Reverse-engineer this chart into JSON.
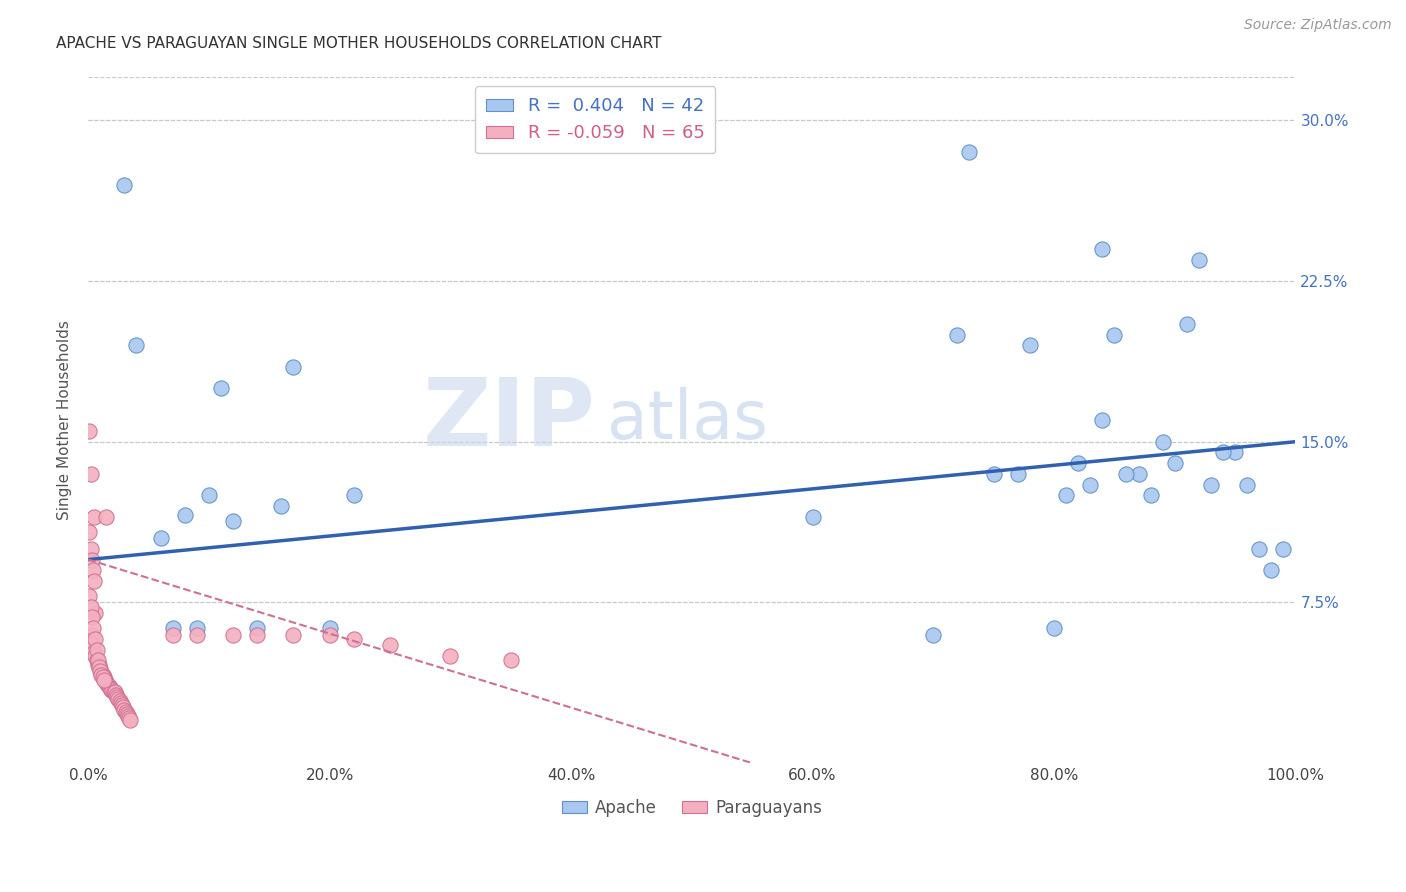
{
  "title": "APACHE VS PARAGUAYAN SINGLE MOTHER HOUSEHOLDS CORRELATION CHART",
  "source": "Source: ZipAtlas.com",
  "ylabel": "Single Mother Households",
  "apache_R": 0.404,
  "apache_N": 42,
  "paraguayan_R": -0.059,
  "paraguayan_N": 65,
  "apache_color": "#a8c8f0",
  "apache_edge_color": "#6090c8",
  "apache_line_color": "#3060b0",
  "paraguayan_color": "#f4b0c0",
  "paraguayan_edge_color": "#d07090",
  "paraguayan_line_color": "#d07090",
  "background_color": "#ffffff",
  "grid_color": "#c8c8c8",
  "watermark_zip": "ZIP",
  "watermark_atlas": "atlas",
  "xlim": [
    0.0,
    1.0
  ],
  "ylim": [
    0.0,
    0.32
  ],
  "apache_x": [
    0.03,
    0.73,
    0.84,
    0.92,
    0.97,
    0.06,
    0.08,
    0.1,
    0.12,
    0.16,
    0.22,
    0.6,
    0.75,
    0.78,
    0.82,
    0.85,
    0.87,
    0.89,
    0.91,
    0.93,
    0.95,
    0.98,
    0.07,
    0.09,
    0.14,
    0.2,
    0.7,
    0.8,
    0.83,
    0.86,
    0.88,
    0.9,
    0.94,
    0.96,
    0.99,
    0.04,
    0.11,
    0.17,
    0.72,
    0.77,
    0.81,
    0.84
  ],
  "apache_y": [
    0.27,
    0.285,
    0.24,
    0.235,
    0.1,
    0.105,
    0.116,
    0.125,
    0.113,
    0.12,
    0.125,
    0.115,
    0.135,
    0.195,
    0.14,
    0.2,
    0.135,
    0.15,
    0.205,
    0.13,
    0.145,
    0.09,
    0.063,
    0.063,
    0.063,
    0.063,
    0.06,
    0.063,
    0.13,
    0.135,
    0.125,
    0.14,
    0.145,
    0.13,
    0.1,
    0.195,
    0.175,
    0.185,
    0.2,
    0.135,
    0.125,
    0.16
  ],
  "paraguayan_x": [
    0.001,
    0.002,
    0.003,
    0.004,
    0.005,
    0.006,
    0.007,
    0.008,
    0.009,
    0.01,
    0.011,
    0.012,
    0.013,
    0.014,
    0.015,
    0.016,
    0.017,
    0.018,
    0.019,
    0.02,
    0.021,
    0.022,
    0.023,
    0.024,
    0.025,
    0.026,
    0.027,
    0.028,
    0.029,
    0.03,
    0.031,
    0.032,
    0.033,
    0.034,
    0.035,
    0.001,
    0.002,
    0.003,
    0.004,
    0.005,
    0.006,
    0.001,
    0.002,
    0.003,
    0.004,
    0.006,
    0.007,
    0.008,
    0.009,
    0.01,
    0.011,
    0.012,
    0.013,
    0.005,
    0.015,
    0.07,
    0.09,
    0.12,
    0.14,
    0.17,
    0.2,
    0.22,
    0.25,
    0.3,
    0.35
  ],
  "paraguayan_y": [
    0.155,
    0.135,
    0.06,
    0.055,
    0.052,
    0.05,
    0.048,
    0.046,
    0.046,
    0.044,
    0.042,
    0.041,
    0.04,
    0.039,
    0.038,
    0.037,
    0.036,
    0.035,
    0.034,
    0.034,
    0.033,
    0.033,
    0.032,
    0.031,
    0.03,
    0.029,
    0.028,
    0.027,
    0.026,
    0.025,
    0.024,
    0.023,
    0.022,
    0.021,
    0.02,
    0.108,
    0.1,
    0.095,
    0.09,
    0.085,
    0.07,
    0.078,
    0.073,
    0.068,
    0.063,
    0.058,
    0.053,
    0.048,
    0.045,
    0.043,
    0.041,
    0.04,
    0.039,
    0.115,
    0.115,
    0.06,
    0.06,
    0.06,
    0.06,
    0.06,
    0.06,
    0.058,
    0.055,
    0.05,
    0.048
  ],
  "yticks": [
    0.075,
    0.15,
    0.225,
    0.3
  ],
  "ytick_labels": [
    "7.5%",
    "15.0%",
    "22.5%",
    "30.0%"
  ],
  "xticks": [
    0.0,
    0.2,
    0.4,
    0.6,
    0.8,
    1.0
  ],
  "xtick_labels": [
    "0.0%",
    "20.0%",
    "40.0%",
    "60.0%",
    "80.0%",
    "100.0%"
  ],
  "apache_line_x": [
    0.0,
    1.0
  ],
  "apache_line_y": [
    0.095,
    0.15
  ],
  "par_line_x": [
    0.0,
    0.55
  ],
  "par_line_y": [
    0.095,
    0.0
  ]
}
